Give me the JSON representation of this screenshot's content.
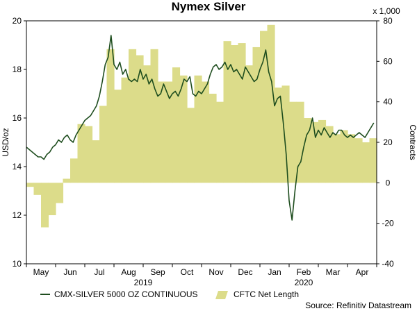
{
  "chart_data": {
    "type": "line+area",
    "title": "Nymex Silver",
    "ylabel_left": "USD/oz",
    "ylabel_right": "Contracts",
    "right_multiplier_label": "x 1,000",
    "ylim_left": [
      10,
      20
    ],
    "ylim_right": [
      -40,
      80
    ],
    "yticks_left": [
      "10",
      "12",
      "14",
      "16",
      "18",
      "20"
    ],
    "yticks_right": [
      "-40",
      "-20",
      "0",
      "20",
      "40",
      "60",
      "80"
    ],
    "months": [
      "May",
      "Jun",
      "Jul",
      "Aug",
      "Sep",
      "Oct",
      "Nov",
      "Dec",
      "Jan",
      "Feb",
      "Mar",
      "Apr"
    ],
    "years": [
      {
        "label": "2019",
        "month_index": 4
      },
      {
        "label": "2020",
        "month_index": 9.5
      }
    ],
    "grid": false,
    "legend_placement": "bottom",
    "source": "Source: Refinitiv Datastream",
    "series": [
      {
        "name": "CMX-SILVER 5000 OZ CONTINUOUS",
        "kind": "line",
        "axis": "left",
        "color": "#1e4d1e",
        "x": [
          0.0,
          0.1,
          0.2,
          0.3,
          0.4,
          0.5,
          0.6,
          0.7,
          0.8,
          0.9,
          1.0,
          1.1,
          1.2,
          1.3,
          1.4,
          1.5,
          1.6,
          1.7,
          1.8,
          1.9,
          2.0,
          2.1,
          2.2,
          2.3,
          2.4,
          2.5,
          2.6,
          2.7,
          2.8,
          2.9,
          3.0,
          3.1,
          3.2,
          3.3,
          3.4,
          3.5,
          3.6,
          3.7,
          3.8,
          3.9,
          4.0,
          4.1,
          4.2,
          4.3,
          4.4,
          4.5,
          4.6,
          4.7,
          4.8,
          4.9,
          5.0,
          5.1,
          5.2,
          5.3,
          5.4,
          5.5,
          5.6,
          5.7,
          5.8,
          5.9,
          6.0,
          6.1,
          6.2,
          6.3,
          6.4,
          6.5,
          6.6,
          6.7,
          6.8,
          6.9,
          7.0,
          7.1,
          7.2,
          7.3,
          7.4,
          7.5,
          7.6,
          7.7,
          7.8,
          7.9,
          8.0,
          8.1,
          8.2,
          8.3,
          8.4,
          8.5,
          8.6,
          8.7,
          8.8,
          8.9,
          9.0,
          9.1,
          9.2,
          9.3,
          9.4,
          9.5,
          9.6,
          9.7,
          9.8,
          9.9,
          10.0,
          10.1,
          10.2,
          10.3,
          10.4,
          10.5,
          10.6,
          10.7,
          10.8,
          10.9,
          11.0,
          11.1,
          11.2,
          11.3,
          11.4,
          11.5,
          11.6,
          11.7,
          11.8,
          11.9
        ],
        "values": [
          14.8,
          14.7,
          14.6,
          14.5,
          14.4,
          14.4,
          14.3,
          14.5,
          14.6,
          14.8,
          14.9,
          15.1,
          15.0,
          15.2,
          15.3,
          15.1,
          15.0,
          15.3,
          15.5,
          15.7,
          15.9,
          16.0,
          16.1,
          16.3,
          16.5,
          16.9,
          17.5,
          18.2,
          18.5,
          19.4,
          18.2,
          18.0,
          18.3,
          17.8,
          18.0,
          17.6,
          17.5,
          17.6,
          17.5,
          18.0,
          17.6,
          17.8,
          17.4,
          17.6,
          17.2,
          16.9,
          17.0,
          17.4,
          17.1,
          16.8,
          17.0,
          17.1,
          16.9,
          17.2,
          17.6,
          17.5,
          17.7,
          17.0,
          16.9,
          17.1,
          17.0,
          17.2,
          17.4,
          17.8,
          18.1,
          18.2,
          18.0,
          18.1,
          18.3,
          18.0,
          18.2,
          17.9,
          18.0,
          17.8,
          17.6,
          18.1,
          17.9,
          17.7,
          17.5,
          17.6,
          18.0,
          18.3,
          18.8,
          17.9,
          17.5,
          16.5,
          16.8,
          16.9,
          15.8,
          14.5,
          12.6,
          11.8,
          13.0,
          14.0,
          14.2,
          14.8,
          15.3,
          15.5,
          16.0,
          15.2,
          15.5,
          15.3,
          15.6,
          15.4,
          15.2,
          15.4,
          15.3,
          15.5,
          15.5,
          15.3,
          15.2,
          15.3,
          15.2,
          15.3,
          15.4,
          15.3,
          15.2,
          15.4,
          15.6,
          15.8
        ]
      },
      {
        "name": "CFTC Net Length",
        "kind": "area",
        "axis": "right",
        "color": "#dcdc8a",
        "x": [
          0.0,
          0.25,
          0.5,
          0.75,
          1.0,
          1.25,
          1.5,
          1.75,
          2.0,
          2.25,
          2.5,
          2.75,
          3.0,
          3.25,
          3.5,
          3.75,
          4.0,
          4.25,
          4.5,
          4.75,
          5.0,
          5.25,
          5.5,
          5.75,
          6.0,
          6.25,
          6.5,
          6.75,
          7.0,
          7.25,
          7.5,
          7.75,
          8.0,
          8.25,
          8.5,
          8.75,
          9.0,
          9.25,
          9.5,
          9.75,
          10.0,
          10.25,
          10.5,
          10.75,
          11.0,
          11.25,
          11.5,
          11.75
        ],
        "values": [
          -2,
          -6,
          -22,
          -16,
          -10,
          2,
          12,
          29,
          28,
          21,
          38,
          66,
          46,
          52,
          66,
          63,
          58,
          66,
          50,
          50,
          57,
          53,
          37,
          53,
          50,
          44,
          40,
          70,
          68,
          69,
          58,
          67,
          75,
          78,
          47,
          48,
          40,
          40,
          32,
          30,
          31,
          28,
          24,
          26,
          24,
          22,
          20,
          22
        ]
      }
    ]
  }
}
